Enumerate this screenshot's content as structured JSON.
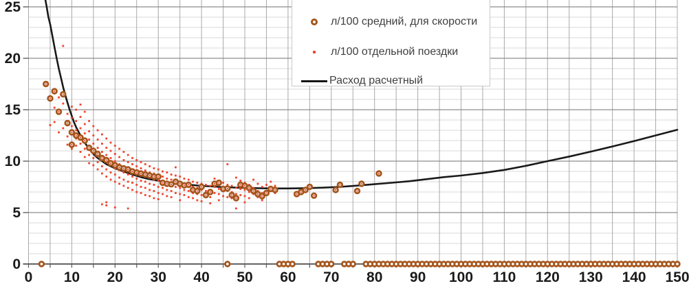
{
  "chart_data": {
    "type": "scatter",
    "title": "",
    "x_axis": {
      "min": 0,
      "max": 150,
      "label_step": 10,
      "grid_step": 5,
      "tick_labels": [
        "0",
        "10",
        "20",
        "30",
        "40",
        "50",
        "60",
        "70",
        "80",
        "90",
        "100",
        "110",
        "120",
        "130",
        "140",
        "150"
      ]
    },
    "y_axis": {
      "min": 0,
      "max": 25.7,
      "label_step": 5,
      "grid_minor_step": 1,
      "tick_labels": [
        "0",
        "5",
        "10",
        "15",
        "20",
        "25"
      ]
    },
    "legend": {
      "position": "top-center"
    },
    "grid": {
      "minor_color": "#D8D8D8",
      "major_color": "#8C8C8C",
      "vertical_color": "#A9A9A9",
      "axis_color": "#4D4D4D",
      "tick_color": "#595959",
      "label_color": "#1A1A1A"
    },
    "series": [
      {
        "name": "л/100 средний, для скорости",
        "type": "scatter",
        "marker": "ring",
        "color": "#A5551B",
        "points": [
          [
            4,
            17.5
          ],
          [
            5,
            16.1
          ],
          [
            6,
            16.8
          ],
          [
            7,
            14.8
          ],
          [
            8,
            16.5
          ],
          [
            9,
            13.7
          ],
          [
            10,
            12.8
          ],
          [
            10,
            11.6
          ],
          [
            11,
            12.5
          ],
          [
            12,
            12.3
          ],
          [
            13,
            12.0
          ],
          [
            14,
            11.3
          ],
          [
            15,
            11.0
          ],
          [
            16,
            10.7
          ],
          [
            17,
            10.3
          ],
          [
            18,
            10.1
          ],
          [
            19,
            9.8
          ],
          [
            20,
            9.6
          ],
          [
            21,
            9.4
          ],
          [
            22,
            9.3
          ],
          [
            23,
            9.2
          ],
          [
            24,
            9.0
          ],
          [
            25,
            8.9
          ],
          [
            26,
            8.8
          ],
          [
            27,
            8.7
          ],
          [
            28,
            8.6
          ],
          [
            29,
            8.5
          ],
          [
            30,
            8.5
          ],
          [
            31,
            7.9
          ],
          [
            32,
            7.8
          ],
          [
            33,
            7.75
          ],
          [
            34,
            8.0
          ],
          [
            35,
            7.8
          ],
          [
            36,
            7.65
          ],
          [
            37,
            7.7
          ],
          [
            38,
            7.2
          ],
          [
            39,
            7.1
          ],
          [
            40,
            7.5
          ],
          [
            41,
            6.7
          ],
          [
            42,
            7.0
          ],
          [
            43,
            7.8
          ],
          [
            44,
            7.9
          ],
          [
            45,
            7.3
          ],
          [
            46,
            7.35
          ],
          [
            47,
            6.7
          ],
          [
            48,
            6.4
          ],
          [
            49,
            7.7
          ],
          [
            50,
            7.6
          ],
          [
            51,
            7.4
          ],
          [
            52,
            7.1
          ],
          [
            53,
            6.8
          ],
          [
            54,
            6.6
          ],
          [
            55,
            6.9
          ],
          [
            56,
            7.3
          ],
          [
            57,
            7.2
          ],
          [
            62,
            6.8
          ],
          [
            63,
            7.0
          ],
          [
            64,
            7.2
          ],
          [
            65,
            7.5
          ],
          [
            66,
            6.65
          ],
          [
            71,
            7.2
          ],
          [
            72,
            7.7
          ],
          [
            76,
            7.1
          ],
          [
            77,
            7.8
          ],
          [
            81,
            8.8
          ]
        ],
        "zero_speeds": [
          3,
          46,
          58,
          59,
          60,
          61,
          67,
          68,
          69,
          70,
          73,
          74,
          75
        ],
        "zero_run": {
          "from": 78,
          "to": 150
        }
      },
      {
        "name": "л/100 отдельной поездки",
        "type": "scatter",
        "marker": "dot",
        "color": "#F2432E",
        "columns": [
          [
            5,
            [
              13.5
            ]
          ],
          [
            6,
            [
              15.2,
              13.8
            ]
          ],
          [
            7,
            [
              16.2,
              12.8
            ]
          ],
          [
            8,
            [
              21.2,
              15.6,
              13.2
            ]
          ],
          [
            9,
            [
              14.6,
              12.4,
              11.6
            ]
          ],
          [
            10,
            [
              15.3,
              14.2,
              13.4,
              12.6,
              11.8,
              11.2
            ]
          ],
          [
            11,
            [
              15.0,
              13.9,
              13.0,
              12.2,
              11.5
            ]
          ],
          [
            12,
            [
              15.5,
              14.3,
              13.2,
              12.5,
              11.7,
              10.9
            ]
          ],
          [
            13,
            [
              14.8,
              13.6,
              12.7,
              12.0,
              11.2,
              10.4
            ]
          ],
          [
            14,
            [
              13.9,
              12.9,
              12.1,
              11.4,
              10.6,
              9.8
            ]
          ],
          [
            15,
            [
              13.4,
              12.5,
              11.7,
              11.0,
              10.3,
              9.6
            ]
          ],
          [
            16,
            [
              13.0,
              12.1,
              11.3,
              10.6,
              9.9,
              9.2
            ]
          ],
          [
            17,
            [
              12.6,
              11.7,
              10.9,
              10.2,
              9.5,
              8.8,
              5.8
            ]
          ],
          [
            18,
            [
              12.2,
              11.3,
              10.6,
              9.9,
              9.2,
              8.5,
              6.0,
              5.7
            ]
          ],
          [
            19,
            [
              11.8,
              11.0,
              10.3,
              9.6,
              8.9,
              8.2
            ]
          ],
          [
            20,
            [
              11.5,
              10.7,
              10.0,
              9.3,
              8.7,
              8.0,
              5.5
            ]
          ],
          [
            21,
            [
              11.2,
              10.4,
              9.7,
              9.1,
              8.4,
              7.8
            ]
          ],
          [
            22,
            [
              10.9,
              10.1,
              9.5,
              8.9,
              8.2,
              7.6
            ]
          ],
          [
            23,
            [
              10.6,
              9.9,
              9.3,
              8.7,
              8.0,
              7.4,
              5.4
            ]
          ],
          [
            24,
            [
              10.3,
              9.7,
              9.1,
              8.5,
              7.9,
              7.2
            ]
          ],
          [
            25,
            [
              10.1,
              9.5,
              8.9,
              8.3,
              7.7,
              7.0
            ]
          ],
          [
            26,
            [
              9.9,
              9.3,
              8.7,
              8.1,
              7.5,
              6.9
            ]
          ],
          [
            27,
            [
              9.7,
              9.1,
              8.5,
              8.0,
              7.4,
              6.7
            ]
          ],
          [
            28,
            [
              9.5,
              8.9,
              8.4,
              7.8,
              7.2,
              6.6
            ]
          ],
          [
            29,
            [
              9.3,
              8.8,
              8.2,
              7.7,
              7.1,
              6.4
            ]
          ],
          [
            30,
            [
              9.2,
              8.6,
              8.1,
              7.5,
              6.9,
              6.3
            ]
          ],
          [
            31,
            [
              9.0,
              8.5,
              7.9,
              7.4,
              6.8
            ]
          ],
          [
            32,
            [
              8.9,
              8.3,
              7.8,
              7.2,
              6.6
            ]
          ],
          [
            33,
            [
              8.7,
              8.2,
              7.6,
              7.1,
              6.5
            ]
          ],
          [
            34,
            [
              9.4,
              8.6,
              8.0,
              7.5,
              6.9
            ]
          ],
          [
            35,
            [
              8.5,
              7.9,
              7.4,
              6.8,
              6.2
            ]
          ],
          [
            36,
            [
              8.3,
              7.8,
              7.2,
              6.7
            ]
          ],
          [
            37,
            [
              8.2,
              7.6,
              7.1,
              6.5
            ]
          ],
          [
            38,
            [
              8.0,
              7.5,
              6.9,
              6.4
            ]
          ],
          [
            39,
            [
              7.9,
              7.4,
              6.8,
              6.2
            ]
          ],
          [
            40,
            [
              7.8,
              7.2,
              6.7,
              6.1
            ]
          ],
          [
            41,
            [
              7.7,
              7.1,
              6.6
            ]
          ],
          [
            42,
            [
              7.6,
              7.0,
              6.5,
              5.9
            ]
          ],
          [
            43,
            [
              8.3,
              7.5,
              6.9
            ]
          ],
          [
            44,
            [
              8.1,
              7.3,
              6.8,
              6.2
            ]
          ],
          [
            45,
            [
              7.9,
              7.2,
              6.6
            ]
          ],
          [
            46,
            [
              9.7,
              7.7,
              7.1,
              6.5
            ]
          ],
          [
            47,
            [
              7.6,
              7.0,
              6.4
            ]
          ],
          [
            48,
            [
              8.4,
              7.4,
              6.8,
              5.4
            ]
          ],
          [
            49,
            [
              8.1,
              7.3,
              6.7
            ]
          ],
          [
            50,
            [
              7.9,
              7.2,
              6.6,
              6.0
            ]
          ],
          [
            51,
            [
              7.7,
              7.0,
              6.4
            ]
          ],
          [
            52,
            [
              8.2,
              7.4,
              6.8
            ]
          ],
          [
            53,
            [
              7.8,
              7.1,
              6.5
            ]
          ],
          [
            54,
            [
              7.5,
              6.9,
              6.2
            ]
          ],
          [
            55,
            [
              7.7,
              7.0
            ]
          ],
          [
            56,
            [
              8.0,
              7.2
            ]
          ],
          [
            57,
            [
              7.6,
              6.9
            ]
          ]
        ]
      },
      {
        "name": "Расход расчетный",
        "type": "line",
        "color": "#1A1A1A",
        "points": [
          [
            3.9,
            25.7
          ],
          [
            4.2,
            25.0
          ],
          [
            4.6,
            24.0
          ],
          [
            5,
            23.3
          ],
          [
            5.5,
            22.2
          ],
          [
            6,
            21.1
          ],
          [
            6.5,
            20.0
          ],
          [
            7,
            19.0
          ],
          [
            7.5,
            18.1
          ],
          [
            8,
            17.2
          ],
          [
            8.5,
            16.4
          ],
          [
            9,
            15.7
          ],
          [
            9.5,
            15.0
          ],
          [
            10,
            14.4
          ],
          [
            10.5,
            13.8
          ],
          [
            11,
            13.3
          ],
          [
            12,
            12.5
          ],
          [
            13,
            11.8
          ],
          [
            14,
            11.2
          ],
          [
            15,
            10.7
          ],
          [
            16,
            10.3
          ],
          [
            17,
            10.0
          ],
          [
            18,
            9.7
          ],
          [
            19,
            9.5
          ],
          [
            20,
            9.3
          ],
          [
            22,
            9.0
          ],
          [
            24,
            8.7
          ],
          [
            26,
            8.45
          ],
          [
            28,
            8.25
          ],
          [
            30,
            8.1
          ],
          [
            32,
            7.95
          ],
          [
            34,
            7.85
          ],
          [
            36,
            7.75
          ],
          [
            38,
            7.67
          ],
          [
            40,
            7.6
          ],
          [
            44,
            7.5
          ],
          [
            48,
            7.43
          ],
          [
            52,
            7.38
          ],
          [
            56,
            7.35
          ],
          [
            60,
            7.35
          ],
          [
            64,
            7.37
          ],
          [
            68,
            7.42
          ],
          [
            72,
            7.5
          ],
          [
            76,
            7.62
          ],
          [
            80,
            7.76
          ],
          [
            84,
            7.9
          ],
          [
            88,
            8.05
          ],
          [
            92,
            8.25
          ],
          [
            96,
            8.45
          ],
          [
            100,
            8.6
          ],
          [
            105,
            8.85
          ],
          [
            110,
            9.15
          ],
          [
            115,
            9.55
          ],
          [
            120,
            10.0
          ],
          [
            125,
            10.45
          ],
          [
            130,
            10.93
          ],
          [
            135,
            11.43
          ],
          [
            140,
            11.95
          ],
          [
            145,
            12.5
          ],
          [
            150,
            13.05
          ]
        ]
      }
    ]
  }
}
